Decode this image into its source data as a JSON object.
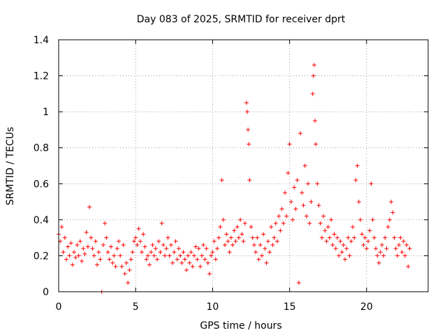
{
  "chart_data": {
    "type": "scatter",
    "title": "Day 083 of 2025, SRMTID for receiver dprt",
    "xlabel": "GPS time / hours",
    "ylabel": "SRMTID / TECUs",
    "xlim": [
      0,
      24
    ],
    "ylim": [
      0,
      1.4
    ],
    "xticks": [
      0,
      5,
      10,
      15,
      20
    ],
    "xtick_labels": [
      "0",
      "5",
      "10",
      "15",
      "20"
    ],
    "yticks": [
      0,
      0.2,
      0.4,
      0.6,
      0.8,
      1.0,
      1.2,
      1.4
    ],
    "ytick_labels": [
      "0",
      "0.2",
      "0.4",
      "0.6",
      "0.8",
      "1",
      "1.2",
      "1.4"
    ],
    "grid": true,
    "marker": "+",
    "color": "#ff0000",
    "series": [
      {
        "name": "SRMTID",
        "points": [
          [
            0.0,
            0.32
          ],
          [
            0.1,
            0.28
          ],
          [
            0.2,
            0.36
          ],
          [
            0.3,
            0.22
          ],
          [
            0.4,
            0.3
          ],
          [
            0.5,
            0.18
          ],
          [
            0.6,
            0.25
          ],
          [
            0.7,
            0.2
          ],
          [
            0.8,
            0.27
          ],
          [
            0.9,
            0.15
          ],
          [
            1.0,
            0.22
          ],
          [
            1.1,
            0.19
          ],
          [
            1.2,
            0.26
          ],
          [
            1.3,
            0.2
          ],
          [
            1.4,
            0.28
          ],
          [
            1.5,
            0.17
          ],
          [
            1.6,
            0.24
          ],
          [
            1.7,
            0.21
          ],
          [
            1.8,
            0.33
          ],
          [
            1.9,
            0.25
          ],
          [
            2.0,
            0.47
          ],
          [
            2.1,
            0.3
          ],
          [
            2.2,
            0.24
          ],
          [
            2.3,
            0.2
          ],
          [
            2.4,
            0.28
          ],
          [
            2.5,
            0.15
          ],
          [
            2.6,
            0.22
          ],
          [
            2.7,
            0.18
          ],
          [
            2.8,
            0.0
          ],
          [
            2.9,
            0.26
          ],
          [
            3.0,
            0.38
          ],
          [
            3.1,
            0.3
          ],
          [
            3.2,
            0.22
          ],
          [
            3.3,
            0.18
          ],
          [
            3.4,
            0.25
          ],
          [
            3.5,
            0.16
          ],
          [
            3.6,
            0.2
          ],
          [
            3.7,
            0.14
          ],
          [
            3.8,
            0.24
          ],
          [
            3.9,
            0.28
          ],
          [
            4.0,
            0.2
          ],
          [
            4.1,
            0.14
          ],
          [
            4.2,
            0.26
          ],
          [
            4.3,
            0.1
          ],
          [
            4.4,
            0.16
          ],
          [
            4.5,
            0.05
          ],
          [
            4.6,
            0.12
          ],
          [
            4.7,
            0.18
          ],
          [
            4.8,
            0.22
          ],
          [
            4.9,
            0.28
          ],
          [
            5.0,
            0.3
          ],
          [
            5.1,
            0.26
          ],
          [
            5.2,
            0.35
          ],
          [
            5.3,
            0.28
          ],
          [
            5.4,
            0.22
          ],
          [
            5.5,
            0.32
          ],
          [
            5.6,
            0.25
          ],
          [
            5.7,
            0.18
          ],
          [
            5.8,
            0.2
          ],
          [
            5.9,
            0.15
          ],
          [
            6.0,
            0.22
          ],
          [
            6.1,
            0.26
          ],
          [
            6.2,
            0.2
          ],
          [
            6.3,
            0.24
          ],
          [
            6.4,
            0.18
          ],
          [
            6.5,
            0.28
          ],
          [
            6.6,
            0.22
          ],
          [
            6.7,
            0.38
          ],
          [
            6.8,
            0.26
          ],
          [
            6.9,
            0.2
          ],
          [
            7.0,
            0.24
          ],
          [
            7.1,
            0.3
          ],
          [
            7.2,
            0.2
          ],
          [
            7.3,
            0.26
          ],
          [
            7.4,
            0.16
          ],
          [
            7.5,
            0.22
          ],
          [
            7.6,
            0.28
          ],
          [
            7.7,
            0.18
          ],
          [
            7.8,
            0.24
          ],
          [
            7.9,
            0.2
          ],
          [
            8.0,
            0.16
          ],
          [
            8.1,
            0.22
          ],
          [
            8.2,
            0.18
          ],
          [
            8.3,
            0.12
          ],
          [
            8.4,
            0.2
          ],
          [
            8.5,
            0.16
          ],
          [
            8.6,
            0.22
          ],
          [
            8.7,
            0.14
          ],
          [
            8.8,
            0.2
          ],
          [
            8.9,
            0.25
          ],
          [
            9.0,
            0.18
          ],
          [
            9.1,
            0.24
          ],
          [
            9.2,
            0.14
          ],
          [
            9.3,
            0.2
          ],
          [
            9.4,
            0.26
          ],
          [
            9.5,
            0.18
          ],
          [
            9.6,
            0.24
          ],
          [
            9.7,
            0.16
          ],
          [
            9.8,
            0.1
          ],
          [
            9.9,
            0.2
          ],
          [
            10.0,
            0.22
          ],
          [
            10.1,
            0.28
          ],
          [
            10.2,
            0.18
          ],
          [
            10.3,
            0.24
          ],
          [
            10.4,
            0.3
          ],
          [
            10.5,
            0.36
          ],
          [
            10.6,
            0.62
          ],
          [
            10.7,
            0.4
          ],
          [
            10.8,
            0.26
          ],
          [
            10.9,
            0.32
          ],
          [
            11.0,
            0.28
          ],
          [
            11.1,
            0.22
          ],
          [
            11.2,
            0.3
          ],
          [
            11.3,
            0.26
          ],
          [
            11.4,
            0.34
          ],
          [
            11.5,
            0.28
          ],
          [
            11.6,
            0.36
          ],
          [
            11.7,
            0.3
          ],
          [
            11.8,
            0.4
          ],
          [
            11.9,
            0.32
          ],
          [
            12.0,
            0.28
          ],
          [
            12.1,
            0.38
          ],
          [
            12.2,
            1.05
          ],
          [
            12.25,
            1.0
          ],
          [
            12.3,
            0.9
          ],
          [
            12.35,
            0.82
          ],
          [
            12.4,
            0.62
          ],
          [
            12.5,
            0.36
          ],
          [
            12.6,
            0.3
          ],
          [
            12.7,
            0.26
          ],
          [
            12.8,
            0.22
          ],
          [
            12.9,
            0.3
          ],
          [
            13.0,
            0.18
          ],
          [
            13.1,
            0.26
          ],
          [
            13.2,
            0.2
          ],
          [
            13.3,
            0.32
          ],
          [
            13.4,
            0.24
          ],
          [
            13.5,
            0.16
          ],
          [
            13.6,
            0.28
          ],
          [
            13.7,
            0.22
          ],
          [
            13.8,
            0.36
          ],
          [
            13.9,
            0.26
          ],
          [
            14.0,
            0.3
          ],
          [
            14.1,
            0.38
          ],
          [
            14.2,
            0.28
          ],
          [
            14.3,
            0.42
          ],
          [
            14.4,
            0.34
          ],
          [
            14.5,
            0.46
          ],
          [
            14.6,
            0.38
          ],
          [
            14.7,
            0.55
          ],
          [
            14.8,
            0.42
          ],
          [
            14.9,
            0.66
          ],
          [
            15.0,
            0.82
          ],
          [
            15.1,
            0.5
          ],
          [
            15.2,
            0.4
          ],
          [
            15.3,
            0.58
          ],
          [
            15.4,
            0.46
          ],
          [
            15.5,
            0.62
          ],
          [
            15.6,
            0.05
          ],
          [
            15.7,
            0.88
          ],
          [
            15.8,
            0.55
          ],
          [
            15.9,
            0.48
          ],
          [
            16.0,
            0.7
          ],
          [
            16.1,
            0.42
          ],
          [
            16.2,
            0.6
          ],
          [
            16.3,
            0.38
          ],
          [
            16.4,
            0.5
          ],
          [
            16.5,
            1.1
          ],
          [
            16.55,
            1.2
          ],
          [
            16.6,
            1.26
          ],
          [
            16.65,
            0.95
          ],
          [
            16.7,
            0.82
          ],
          [
            16.8,
            0.6
          ],
          [
            16.9,
            0.48
          ],
          [
            17.0,
            0.38
          ],
          [
            17.1,
            0.3
          ],
          [
            17.2,
            0.42
          ],
          [
            17.3,
            0.34
          ],
          [
            17.4,
            0.28
          ],
          [
            17.5,
            0.36
          ],
          [
            17.6,
            0.3
          ],
          [
            17.7,
            0.4
          ],
          [
            17.8,
            0.26
          ],
          [
            17.9,
            0.32
          ],
          [
            18.0,
            0.24
          ],
          [
            18.1,
            0.3
          ],
          [
            18.2,
            0.2
          ],
          [
            18.3,
            0.28
          ],
          [
            18.4,
            0.22
          ],
          [
            18.5,
            0.26
          ],
          [
            18.6,
            0.18
          ],
          [
            18.7,
            0.24
          ],
          [
            18.8,
            0.3
          ],
          [
            18.9,
            0.2
          ],
          [
            19.0,
            0.28
          ],
          [
            19.1,
            0.36
          ],
          [
            19.2,
            0.3
          ],
          [
            19.3,
            0.62
          ],
          [
            19.4,
            0.7
          ],
          [
            19.5,
            0.5
          ],
          [
            19.6,
            0.4
          ],
          [
            19.7,
            0.32
          ],
          [
            19.8,
            0.26
          ],
          [
            19.9,
            0.3
          ],
          [
            20.0,
            0.24
          ],
          [
            20.1,
            0.28
          ],
          [
            20.2,
            0.34
          ],
          [
            20.3,
            0.6
          ],
          [
            20.4,
            0.4
          ],
          [
            20.5,
            0.3
          ],
          [
            20.6,
            0.24
          ],
          [
            20.7,
            0.2
          ],
          [
            20.8,
            0.16
          ],
          [
            20.9,
            0.22
          ],
          [
            21.0,
            0.26
          ],
          [
            21.1,
            0.2
          ],
          [
            21.2,
            0.3
          ],
          [
            21.3,
            0.24
          ],
          [
            21.4,
            0.36
          ],
          [
            21.5,
            0.4
          ],
          [
            21.6,
            0.5
          ],
          [
            21.7,
            0.44
          ],
          [
            21.8,
            0.3
          ],
          [
            21.9,
            0.24
          ],
          [
            22.0,
            0.2
          ],
          [
            22.1,
            0.26
          ],
          [
            22.2,
            0.3
          ],
          [
            22.3,
            0.22
          ],
          [
            22.4,
            0.28
          ],
          [
            22.5,
            0.2
          ],
          [
            22.6,
            0.26
          ],
          [
            22.7,
            0.14
          ],
          [
            22.8,
            0.24
          ]
        ]
      }
    ]
  }
}
